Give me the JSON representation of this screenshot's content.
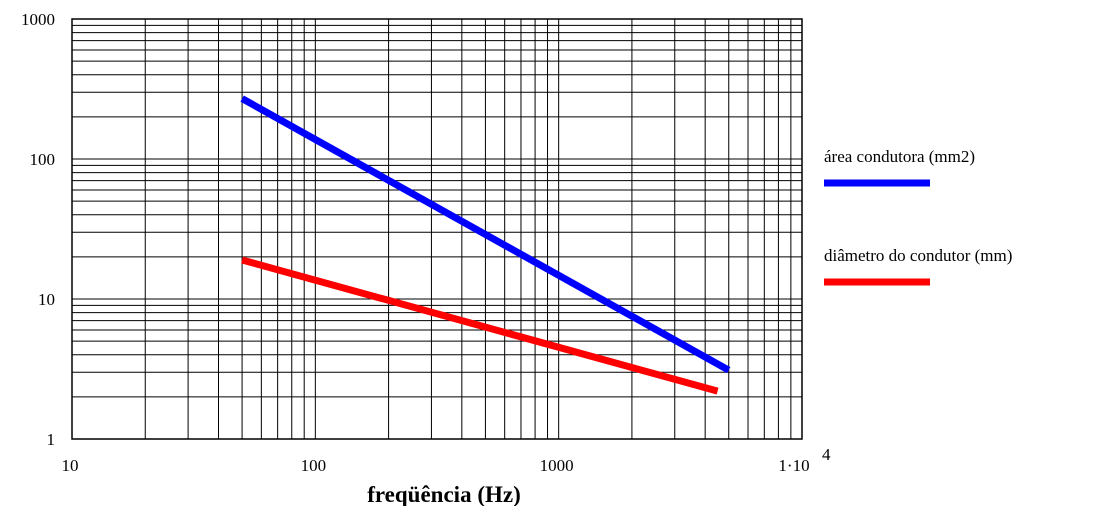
{
  "chart_data": {
    "type": "line",
    "xlabel": "freqüência (Hz)",
    "ylabel": "",
    "xscale": "log",
    "yscale": "log",
    "xlim": [
      10,
      10000
    ],
    "ylim": [
      1,
      1000
    ],
    "grid": true,
    "legend_position": "right",
    "x_ticks": [
      {
        "value": 10,
        "label": "10"
      },
      {
        "value": 100,
        "label": "100"
      },
      {
        "value": 1000,
        "label": "1000"
      },
      {
        "value": 10000,
        "label": "1·10",
        "superscript": "4"
      }
    ],
    "y_ticks": [
      {
        "value": 1,
        "label": "1"
      },
      {
        "value": 10,
        "label": "10"
      },
      {
        "value": 100,
        "label": "100"
      },
      {
        "value": 1000,
        "label": "1000"
      }
    ],
    "series": [
      {
        "name": "área condutora (mm2)",
        "color": "#0000ff",
        "x": [
          50,
          5000
        ],
        "y": [
          270,
          3.1
        ]
      },
      {
        "name": "diâmetro do condutor (mm)",
        "color": "#ff0000",
        "x": [
          50,
          4500
        ],
        "y": [
          19,
          2.2
        ]
      }
    ]
  }
}
